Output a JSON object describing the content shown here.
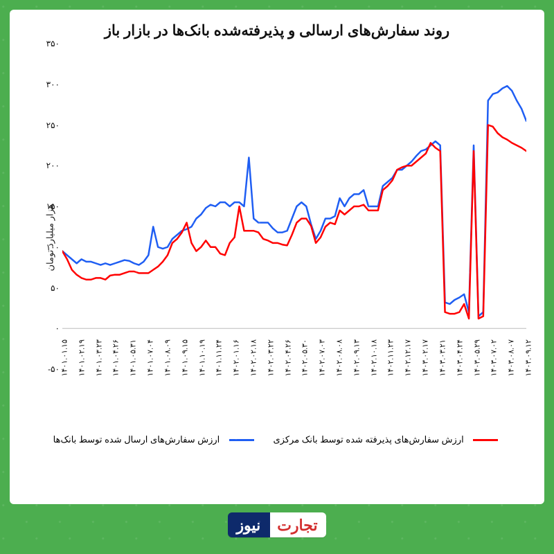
{
  "chart": {
    "type": "line",
    "title": "روند سفارش‌های ارسالی و پذیرفته‌شده بانک‌ها در بازار باز",
    "title_fontsize": 21,
    "y_axis": {
      "title": "هزار میلیارد تومان",
      "title_fontsize": 13,
      "min": -50,
      "max": 350,
      "tick_step": 50,
      "ticks": [
        "-۵۰",
        "۰",
        "۵۰",
        "۱۰۰",
        "۱۵۰",
        "۲۰۰",
        "۲۵۰",
        "۳۰۰",
        "۳۵۰"
      ],
      "tick_fontsize": 12,
      "grid": false
    },
    "x_axis": {
      "labels": [
        "۱۴۰۱.۰۱.۱۵",
        "۱۴۰۱.۰۲.۱۹",
        "۱۴۰۱.۰۳.۲۳",
        "۱۴۰۱.۰۴.۲۶",
        "۱۴۰۱.۰۵.۳۱",
        "۱۴۰۱.۰۷.۰۴",
        "۱۴۰۱.۰۸.۰۹",
        "۱۴۰۱.۰۹.۱۵",
        "۱۴۰۱.۱۰.۱۹",
        "۱۴۰۱.۱۱.۲۴",
        "۱۴۰۲.۰۱.۱۶",
        "۱۴۰۲.۰۲.۱۸",
        "۱۴۰۲.۰۳.۲۲",
        "۱۴۰۲.۰۴.۲۶",
        "۱۴۰۲.۰۵.۳۰",
        "۱۴۰۲.۰۷.۰۳",
        "۱۴۰۲.۰۸.۰۸",
        "۱۴۰۲.۰۹.۱۳",
        "۱۴۰۲.۱۰.۱۸",
        "۱۴۰۲.۱۱.۲۳",
        "۱۴۰۲.۱۲.۱۷",
        "۱۴۰۳.۰۲.۱۷",
        "۱۴۰۳.۰۳.۲۱",
        "۱۴۰۳.۰۴.۲۴",
        "۱۴۰۳.۰۵.۲۹",
        "۱۴۰۳.۰۷.۰۲",
        "۱۴۰۳.۰۸.۰۷",
        "۱۴۰۳.۰۹.۱۲"
      ],
      "tick_fontsize": 11,
      "rotation_deg": -90
    },
    "series": [
      {
        "name": "sent",
        "label": "ارزش سفارش‌های ارسال شده توسط بانک‌ها",
        "color": "#1f5ef3",
        "line_width": 2.5,
        "values": [
          95,
          90,
          85,
          80,
          85,
          82,
          82,
          80,
          78,
          80,
          78,
          80,
          82,
          84,
          83,
          80,
          78,
          82,
          90,
          125,
          100,
          98,
          100,
          110,
          115,
          120,
          122,
          125,
          135,
          140,
          148,
          152,
          150,
          155,
          155,
          150,
          155,
          155,
          150,
          210,
          135,
          130,
          130,
          130,
          123,
          118,
          118,
          120,
          135,
          150,
          155,
          150,
          128,
          110,
          120,
          135,
          135,
          138,
          160,
          150,
          160,
          165,
          165,
          170,
          150,
          150,
          150,
          175,
          180,
          185,
          195,
          195,
          200,
          205,
          212,
          218,
          220,
          225,
          230,
          225,
          32,
          30,
          35,
          38,
          42,
          20,
          225,
          15,
          20,
          280,
          288,
          290,
          295,
          298,
          292,
          280,
          270,
          255
        ]
      },
      {
        "name": "accepted",
        "label": "ارزش سفارش‌های پذیرفته شده توسط بانک مرکزی",
        "color": "#ff0000",
        "line_width": 2.5,
        "values": [
          95,
          85,
          72,
          66,
          62,
          60,
          60,
          62,
          62,
          60,
          65,
          66,
          66,
          68,
          70,
          70,
          68,
          68,
          68,
          72,
          76,
          82,
          90,
          105,
          110,
          118,
          130,
          105,
          95,
          100,
          108,
          100,
          100,
          92,
          90,
          105,
          112,
          150,
          120,
          120,
          120,
          118,
          110,
          108,
          105,
          105,
          103,
          102,
          115,
          130,
          135,
          135,
          126,
          105,
          112,
          125,
          130,
          128,
          145,
          140,
          145,
          150,
          150,
          152,
          145,
          145,
          145,
          170,
          175,
          182,
          195,
          198,
          200,
          200,
          205,
          210,
          215,
          228,
          222,
          218,
          20,
          18,
          18,
          20,
          30,
          12,
          218,
          12,
          15,
          250,
          248,
          240,
          235,
          232,
          228,
          225,
          222,
          218
        ]
      }
    ],
    "background_color": "#ffffff",
    "page_background": "#4cae4f",
    "legend_fontsize": 13
  },
  "logo": {
    "left": "تجارت",
    "right": "نیوز"
  }
}
